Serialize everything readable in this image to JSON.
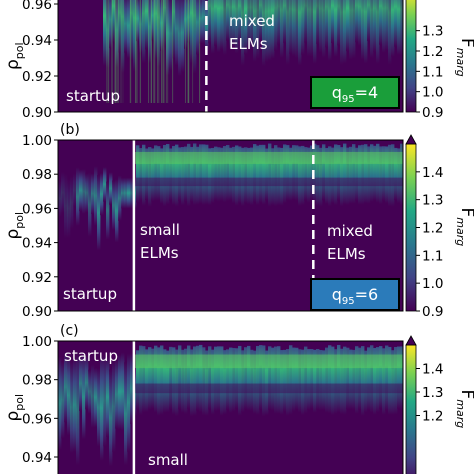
{
  "chart_data": [
    {
      "type": "heatmap",
      "panel_label": "",
      "ylabel": "ρpol",
      "yticks": [
        0.9,
        0.92,
        0.94,
        0.96
      ],
      "ylim": [
        0.9,
        0.97
      ],
      "colorbar_label": "Fmarg",
      "colorbar_ticks": [
        0.9,
        1.0,
        1.1,
        1.2,
        1.3
      ],
      "colorbar_range": [
        0.9,
        1.5
      ],
      "phases": [
        {
          "label": "startup",
          "x_frac_start": 0.0,
          "x_frac_end": 0.43
        },
        {
          "label": "mixed ELMs",
          "x_frac_start": 0.43,
          "x_frac_end": 1.0
        }
      ],
      "boundary_x_frac": 0.43,
      "boundary_style": "dashed",
      "badge": {
        "label": "q95=4",
        "color": "#1a9e3a"
      },
      "pedestal": {
        "top_rho": 0.968,
        "bottom_rho_left": 0.92,
        "bottom_rho_right": 0.925
      }
    },
    {
      "type": "heatmap",
      "panel_label": "(b)",
      "ylabel": "ρpol",
      "yticks": [
        0.9,
        0.92,
        0.94,
        0.96,
        0.98,
        1.0
      ],
      "ylim": [
        0.9,
        1.0
      ],
      "colorbar_label": "Fmarg",
      "colorbar_ticks": [
        0.9,
        1.0,
        1.1,
        1.2,
        1.3,
        1.4
      ],
      "colorbar_range": [
        0.9,
        1.5
      ],
      "phases": [
        {
          "label": "startup",
          "x_frac_start": 0.0,
          "x_frac_end": 0.22
        },
        {
          "label": "small ELMs",
          "x_frac_start": 0.22,
          "x_frac_end": 0.74
        },
        {
          "label": "mixed ELMs",
          "x_frac_start": 0.74,
          "x_frac_end": 1.0
        }
      ],
      "boundaries": [
        {
          "x_frac": 0.22,
          "style": "solid"
        },
        {
          "x_frac": 0.74,
          "style": "dashed"
        }
      ],
      "badge": {
        "label": "q95=6",
        "color": "#2b7bba"
      },
      "pedestal": {
        "top_rho": 0.995,
        "bottom_rho": 0.965
      }
    },
    {
      "type": "heatmap",
      "panel_label": "(c)",
      "ylabel": "ρpol",
      "yticks": [
        0.94,
        0.96,
        0.98,
        1.0
      ],
      "ylim": [
        0.925,
        1.0
      ],
      "colorbar_label": "Fmarg",
      "colorbar_ticks": [
        1.2,
        1.3,
        1.4
      ],
      "colorbar_range": [
        0.9,
        1.5
      ],
      "phases": [
        {
          "label": "startup",
          "x_frac_start": 0.0,
          "x_frac_end": 0.22
        },
        {
          "label": "small",
          "x_frac_start": 0.22,
          "x_frac_end": 1.0
        }
      ],
      "boundaries": [
        {
          "x_frac": 0.22,
          "style": "solid"
        }
      ],
      "pedestal": {
        "top_rho": 0.995,
        "bottom_rho": 0.965
      }
    }
  ],
  "colors": {
    "background": "#440154",
    "low": "#3b528b",
    "mid": "#21908d",
    "high": "#5ec962",
    "peak": "#fde725"
  }
}
